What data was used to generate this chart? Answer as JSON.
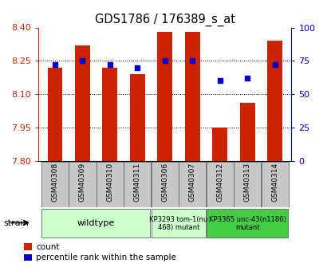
{
  "title": "GDS1786 / 176389_s_at",
  "samples": [
    "GSM40308",
    "GSM40309",
    "GSM40310",
    "GSM40311",
    "GSM40306",
    "GSM40307",
    "GSM40312",
    "GSM40313",
    "GSM40314"
  ],
  "bar_values": [
    8.22,
    8.32,
    8.22,
    8.19,
    8.38,
    8.38,
    7.95,
    8.06,
    8.34
  ],
  "percentile_values": [
    72,
    75,
    72,
    70,
    75,
    75,
    60,
    62,
    72
  ],
  "ymin": 7.8,
  "ymax": 8.4,
  "yticks": [
    7.8,
    7.95,
    8.1,
    8.25,
    8.4
  ],
  "y2ticks": [
    0,
    25,
    50,
    75,
    100
  ],
  "bar_color": "#cc2200",
  "percentile_color": "#0000cc",
  "strain_groups": [
    {
      "label": "wildtype",
      "start": 0,
      "end": 3,
      "color": "#ccffcc"
    },
    {
      "label": "KP3293 tom-1(nu\n468) mutant",
      "start": 4,
      "end": 5,
      "color": "#ccffcc"
    },
    {
      "label": "KP3365 unc-43(n1186)\nmutant",
      "start": 6,
      "end": 8,
      "color": "#66dd66"
    }
  ],
  "legend_count": "count",
  "legend_percentile": "percentile rank within the sample",
  "tick_label_color_left": "#cc2200",
  "tick_label_color_right": "#0000cc",
  "sample_box_color": "#c8c8c8",
  "wildtype_color": "#ccffcc",
  "mutant1_color": "#ccffcc",
  "mutant2_color": "#44cc44"
}
